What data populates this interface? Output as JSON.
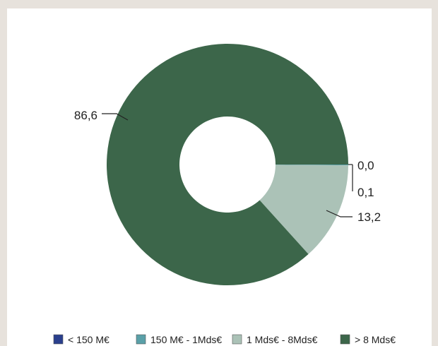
{
  "chart_data": {
    "type": "pie",
    "donut": true,
    "title": "",
    "categories": [
      "< 150 M€",
      "150 M€ - 1Mds€",
      "1 Mds€ - 8Mds€",
      "> 8 Mds€"
    ],
    "values": [
      0.0,
      0.1,
      13.2,
      86.6
    ],
    "data_labels": [
      "0,0",
      "0,1",
      "13,2",
      "86,6"
    ],
    "colors": [
      "#2a3f8d",
      "#5aa0a8",
      "#abc2b7",
      "#3c664a"
    ],
    "legend_position": "bottom",
    "start_angle_deg": 90,
    "direction": "clockwise"
  }
}
